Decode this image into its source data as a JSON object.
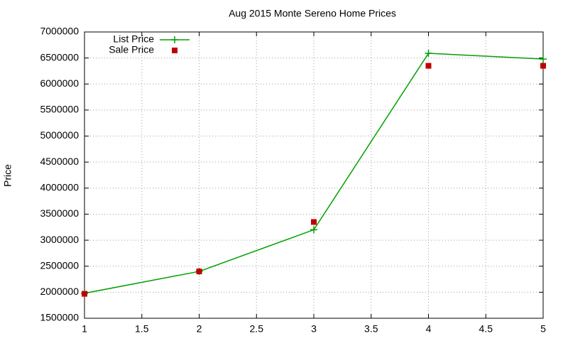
{
  "chart_data": {
    "type": "line",
    "title": "Aug 2015 Monte Sereno Home Prices",
    "y_label": "Price",
    "x": [
      1,
      2,
      3,
      4,
      5
    ],
    "series": [
      {
        "name": "List Price",
        "color": "#00a000",
        "marker": "plus",
        "line": true,
        "values": [
          1980000,
          2400000,
          3200000,
          6590000,
          6480000
        ]
      },
      {
        "name": "Sale Price",
        "color": "#c00000",
        "marker": "square",
        "line": false,
        "values": [
          1970000,
          2400000,
          3350000,
          6350000,
          6350000
        ]
      }
    ],
    "xlim": [
      1,
      5
    ],
    "xticks": [
      1,
      1.5,
      2,
      2.5,
      3,
      3.5,
      4,
      4.5,
      5
    ],
    "ylim": [
      1500000,
      7000000
    ],
    "yticks": [
      1500000,
      2000000,
      2500000,
      3000000,
      3500000,
      4000000,
      4500000,
      5000000,
      5500000,
      6000000,
      6500000,
      7000000
    ],
    "grid": true,
    "legend": "top-left"
  }
}
